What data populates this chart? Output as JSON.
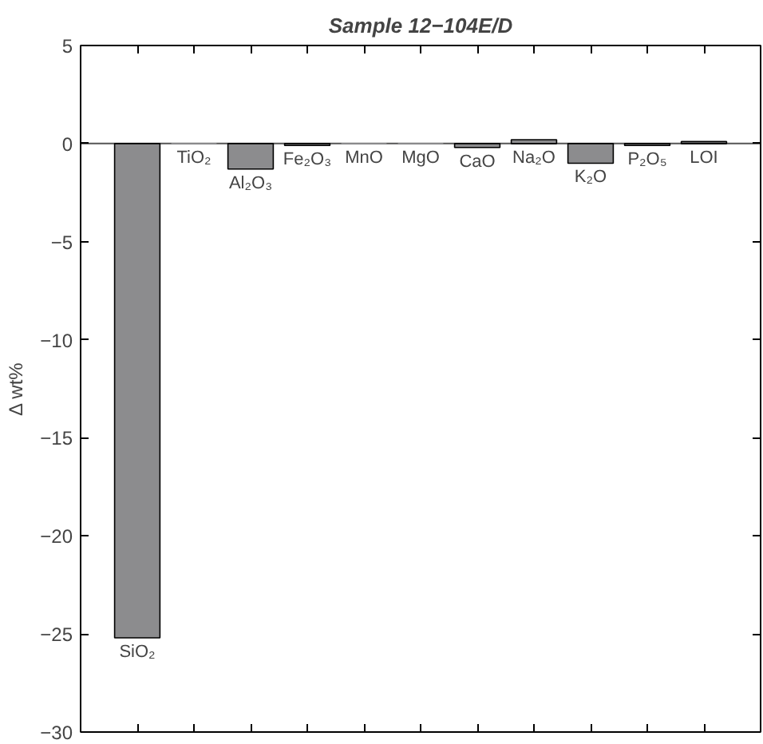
{
  "chart_data": {
    "type": "bar",
    "title": "Sample 12−104E/D",
    "ylabel": "Δ wt%",
    "categories": [
      "SiO₂",
      "TiO₂",
      "Al₂O₃",
      "Fe₂O₃",
      "MnO",
      "MgO",
      "CaO",
      "Na₂O",
      "K₂O",
      "P₂O₅",
      "LOI"
    ],
    "values": [
      -25.2,
      0,
      -1.3,
      -0.1,
      0,
      0,
      -0.2,
      0.2,
      -1.0,
      -0.1,
      0.1
    ],
    "color": "#8c8c8e",
    "ylim": [
      -30,
      5
    ],
    "yticks": [
      -30,
      -25,
      -20,
      -15,
      -10,
      -5,
      0,
      5
    ],
    "tick_labels": "y",
    "grid": false
  }
}
